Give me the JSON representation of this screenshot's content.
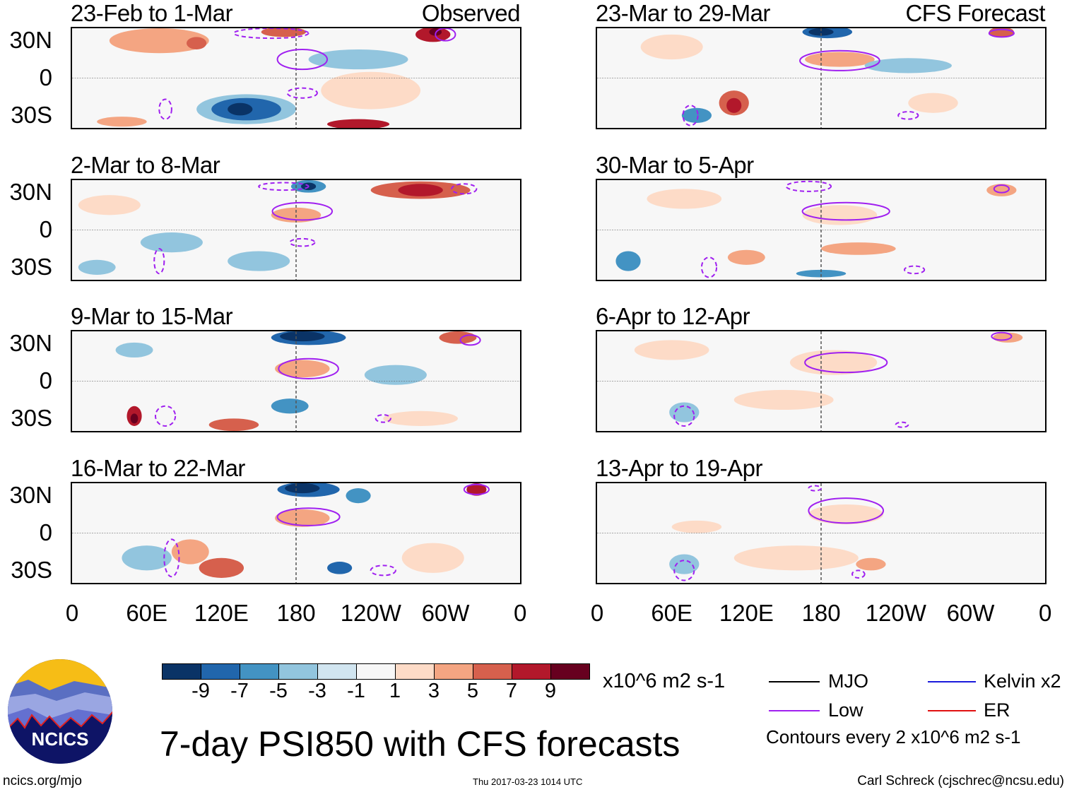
{
  "panels_left": [
    {
      "title": "23-Feb to 1-Mar",
      "tag": "Observed"
    },
    {
      "title": "2-Mar to 8-Mar",
      "tag": ""
    },
    {
      "title": "9-Mar to 15-Mar",
      "tag": ""
    },
    {
      "title": "16-Mar to 22-Mar",
      "tag": ""
    }
  ],
  "panels_right": [
    {
      "title": "23-Mar to 29-Mar",
      "tag": "CFS Forecast"
    },
    {
      "title": "30-Mar to 5-Apr",
      "tag": ""
    },
    {
      "title": "6-Apr to 12-Apr",
      "tag": ""
    },
    {
      "title": "13-Apr to 19-Apr",
      "tag": ""
    }
  ],
  "lat_labels": [
    "30N",
    "0",
    "30S"
  ],
  "lon_labels": [
    "0",
    "60E",
    "120E",
    "180",
    "120W",
    "60W",
    "0"
  ],
  "colorbar": {
    "colors": [
      "#0a3366",
      "#2166ac",
      "#4393c3",
      "#92c5de",
      "#d1e5f0",
      "#f7f7f7",
      "#fddbc7",
      "#f4a582",
      "#d6604d",
      "#b2182b",
      "#67001f"
    ],
    "labels": [
      "-9",
      "-7",
      "-5",
      "-3",
      "-1",
      "1",
      "3",
      "5",
      "7",
      "9"
    ],
    "units": "x10^6 m2 s-1"
  },
  "legend": {
    "items": [
      {
        "label": "MJO",
        "color": "#000000"
      },
      {
        "label": "Kelvin x2",
        "color": "#1a1adc"
      },
      {
        "label": "Low",
        "color": "#a020f0"
      },
      {
        "label": "ER",
        "color": "#e01010"
      }
    ],
    "note": "Contours every 2 x10^6 m2 s-1"
  },
  "title": "7-day PSI850 with CFS forecasts",
  "logo_text": "NCICS",
  "footer": {
    "url": "ncics.org/mjo",
    "timestamp": "Thu 2017-03-23 1014 UTC",
    "author": "Carl Schreck (cjschrec@ncsu.edu)"
  },
  "map_fields": [
    {
      "anomalies": [
        [
          70,
          30,
          40,
          10,
          7
        ],
        [
          100,
          28,
          8,
          5,
          8
        ],
        [
          170,
          37,
          18,
          4,
          8
        ],
        [
          290,
          35,
          14,
          6,
          9
        ],
        [
          292,
          37,
          5,
          3,
          10
        ],
        [
          230,
          15,
          40,
          8,
          3
        ],
        [
          240,
          -10,
          40,
          15,
          6
        ],
        [
          140,
          -25,
          40,
          12,
          3
        ],
        [
          140,
          -25,
          28,
          9,
          1
        ],
        [
          135,
          -25,
          10,
          5,
          0
        ],
        [
          230,
          -37,
          25,
          4,
          9
        ],
        [
          40,
          -35,
          20,
          4,
          7
        ]
      ],
      "lows": [
        [
          185,
          15,
          20,
          8,
          1
        ],
        [
          185,
          -12,
          12,
          4,
          0
        ],
        [
          160,
          36,
          30,
          4,
          0
        ],
        [
          300,
          35,
          8,
          5,
          1
        ],
        [
          75,
          -25,
          5,
          8,
          0
        ]
      ]
    },
    {
      "anomalies": [
        [
          30,
          20,
          25,
          8,
          6
        ],
        [
          190,
          35,
          14,
          5,
          2
        ],
        [
          190,
          35,
          6,
          3,
          0
        ],
        [
          280,
          32,
          40,
          7,
          8
        ],
        [
          280,
          32,
          18,
          5,
          9
        ],
        [
          180,
          12,
          20,
          6,
          7
        ],
        [
          80,
          -10,
          25,
          8,
          3
        ],
        [
          150,
          -25,
          25,
          8,
          3
        ],
        [
          20,
          -30,
          15,
          6,
          3
        ]
      ],
      "lows": [
        [
          185,
          15,
          24,
          7,
          1
        ],
        [
          315,
          33,
          10,
          4,
          0
        ],
        [
          70,
          -25,
          4,
          10,
          0
        ],
        [
          170,
          35,
          20,
          3,
          0
        ],
        [
          185,
          -10,
          10,
          3,
          0
        ]
      ]
    },
    {
      "anomalies": [
        [
          190,
          35,
          30,
          6,
          1
        ],
        [
          185,
          36,
          18,
          4,
          0
        ],
        [
          185,
          10,
          22,
          7,
          7
        ],
        [
          310,
          35,
          15,
          5,
          8
        ],
        [
          50,
          25,
          15,
          6,
          3
        ],
        [
          50,
          -28,
          6,
          8,
          9
        ],
        [
          50,
          -30,
          3,
          4,
          10
        ],
        [
          130,
          -35,
          20,
          5,
          8
        ],
        [
          175,
          -20,
          15,
          6,
          2
        ],
        [
          260,
          5,
          25,
          8,
          3
        ],
        [
          280,
          -30,
          30,
          6,
          6
        ]
      ],
      "lows": [
        [
          190,
          10,
          24,
          8,
          1
        ],
        [
          320,
          33,
          8,
          4,
          1
        ],
        [
          75,
          -28,
          8,
          8,
          0
        ],
        [
          250,
          -30,
          6,
          3,
          0
        ]
      ]
    },
    {
      "anomalies": [
        [
          190,
          35,
          25,
          6,
          1
        ],
        [
          185,
          36,
          14,
          4,
          0
        ],
        [
          230,
          30,
          10,
          6,
          2
        ],
        [
          185,
          12,
          22,
          7,
          7
        ],
        [
          325,
          35,
          8,
          5,
          9
        ],
        [
          95,
          -15,
          15,
          10,
          7
        ],
        [
          120,
          -28,
          18,
          8,
          8
        ],
        [
          215,
          -28,
          10,
          5,
          1
        ],
        [
          60,
          -20,
          20,
          10,
          3
        ],
        [
          290,
          -20,
          25,
          12,
          6
        ]
      ],
      "lows": [
        [
          190,
          13,
          25,
          7,
          1
        ],
        [
          325,
          35,
          10,
          4,
          1
        ],
        [
          80,
          -20,
          6,
          15,
          0
        ],
        [
          250,
          -30,
          10,
          4,
          0
        ]
      ]
    },
    {
      "anomalies": [
        [
          185,
          37,
          20,
          5,
          1
        ],
        [
          180,
          37,
          10,
          3,
          0
        ],
        [
          195,
          15,
          28,
          6,
          7
        ],
        [
          110,
          -20,
          12,
          10,
          8
        ],
        [
          110,
          -22,
          6,
          6,
          9
        ],
        [
          80,
          -30,
          12,
          6,
          2
        ],
        [
          325,
          37,
          10,
          4,
          8
        ],
        [
          250,
          10,
          35,
          6,
          3
        ],
        [
          270,
          -20,
          20,
          8,
          6
        ],
        [
          60,
          25,
          25,
          10,
          6
        ]
      ],
      "lows": [
        [
          195,
          14,
          32,
          8,
          1
        ],
        [
          325,
          36,
          10,
          3,
          1
        ],
        [
          75,
          -30,
          6,
          8,
          0
        ],
        [
          250,
          -30,
          8,
          3,
          0
        ]
      ]
    },
    {
      "anomalies": [
        [
          195,
          12,
          30,
          8,
          6
        ],
        [
          210,
          -15,
          30,
          5,
          7
        ],
        [
          120,
          -22,
          15,
          6,
          7
        ],
        [
          180,
          -35,
          20,
          3,
          2
        ],
        [
          25,
          -25,
          10,
          8,
          2
        ],
        [
          325,
          32,
          12,
          5,
          7
        ],
        [
          70,
          25,
          30,
          8,
          6
        ]
      ],
      "lows": [
        [
          200,
          15,
          35,
          7,
          1
        ],
        [
          170,
          35,
          18,
          4,
          0
        ],
        [
          90,
          -30,
          6,
          8,
          0
        ],
        [
          255,
          -32,
          8,
          3,
          0
        ],
        [
          325,
          33,
          6,
          3,
          1
        ]
      ]
    },
    {
      "anomalies": [
        [
          190,
          15,
          35,
          10,
          6
        ],
        [
          150,
          -15,
          40,
          8,
          6
        ],
        [
          70,
          -25,
          12,
          8,
          3
        ],
        [
          330,
          35,
          12,
          4,
          7
        ],
        [
          60,
          25,
          30,
          8,
          6
        ]
      ],
      "lows": [
        [
          200,
          15,
          33,
          8,
          1
        ],
        [
          70,
          -28,
          8,
          8,
          0
        ],
        [
          245,
          -35,
          5,
          2,
          0
        ],
        [
          325,
          36,
          8,
          3,
          1
        ]
      ]
    },
    {
      "anomalies": [
        [
          200,
          15,
          30,
          8,
          6
        ],
        [
          160,
          -20,
          50,
          10,
          6
        ],
        [
          220,
          -25,
          12,
          5,
          7
        ],
        [
          70,
          -25,
          12,
          8,
          3
        ],
        [
          80,
          5,
          20,
          5,
          6
        ]
      ],
      "lows": [
        [
          200,
          18,
          30,
          10,
          1
        ],
        [
          70,
          -30,
          8,
          8,
          0
        ],
        [
          210,
          -33,
          5,
          3,
          0
        ],
        [
          175,
          36,
          5,
          2,
          0
        ]
      ]
    }
  ]
}
